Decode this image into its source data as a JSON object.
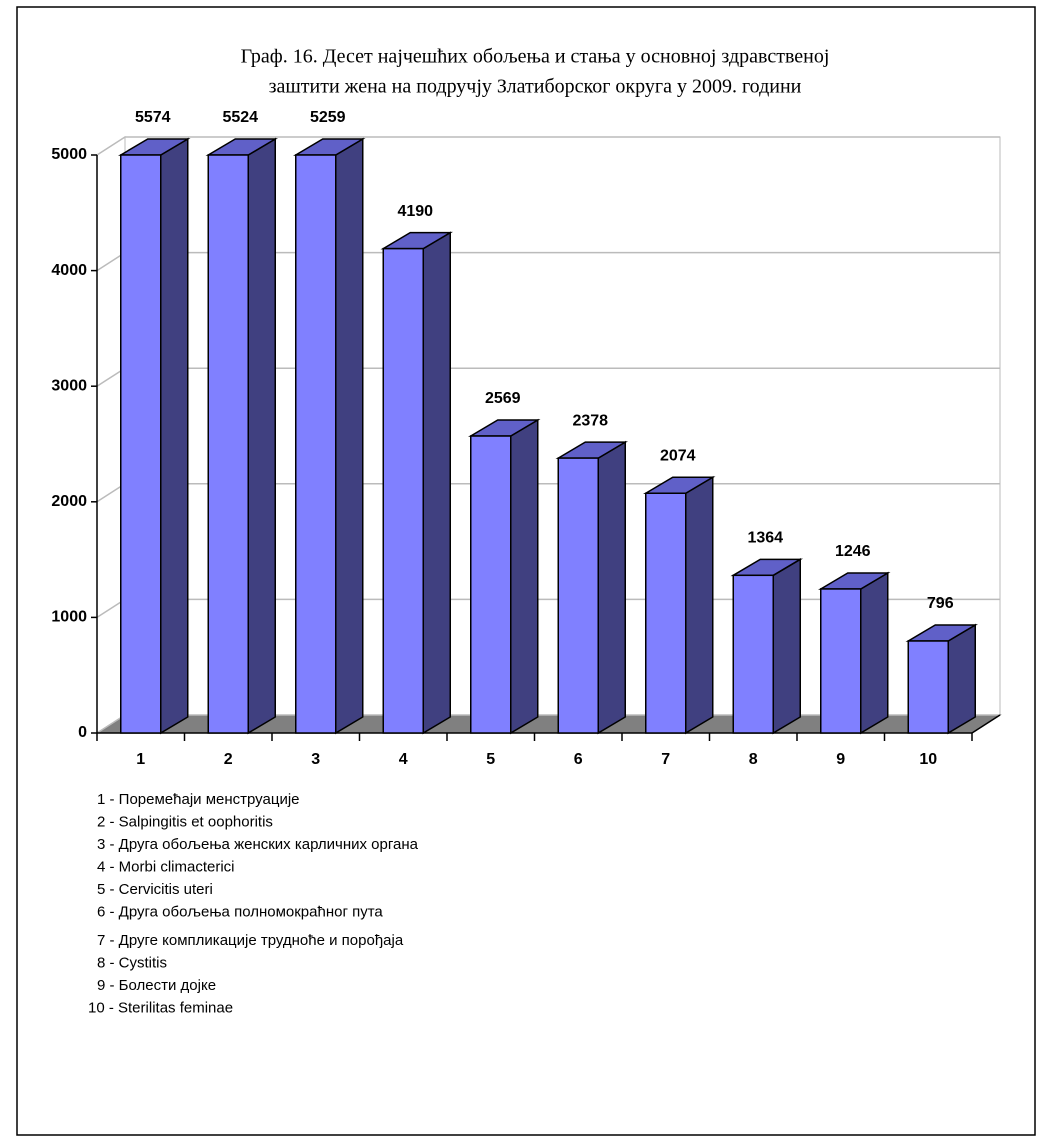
{
  "chart_data": {
    "type": "bar3d",
    "title": "Граф. 16. Десет најчешћих обољења и стања у основној здравственој",
    "subtitle": "заштити жена на подручју Златиборског округа у 2009. години",
    "categories": [
      "1",
      "2",
      "3",
      "4",
      "5",
      "6",
      "7",
      "8",
      "9",
      "10"
    ],
    "values": [
      5574,
      5524,
      5259,
      4190,
      2569,
      2378,
      2074,
      1364,
      1246,
      796
    ],
    "color": "#8080ff",
    "side_color": "#404080",
    "ylim": [
      0,
      5000
    ],
    "yticks": [
      0,
      1000,
      2000,
      3000,
      4000,
      5000
    ],
    "grid": true,
    "legend_items": [
      "1 - Поремећаји менструације",
      "2 - Salpingitis et oophoritis",
      "3 - Друга обољења женских карличних органа",
      "4 - Morbi climacterici",
      "5 - Cervicitis uteri",
      "6 - Друга обољења полномокраћног пута",
      "7 - Друге компликације трудноће и порођаја",
      "8 - Cystitis",
      "9 - Болести дојке",
      "10 - Sterilitas feminae"
    ]
  }
}
